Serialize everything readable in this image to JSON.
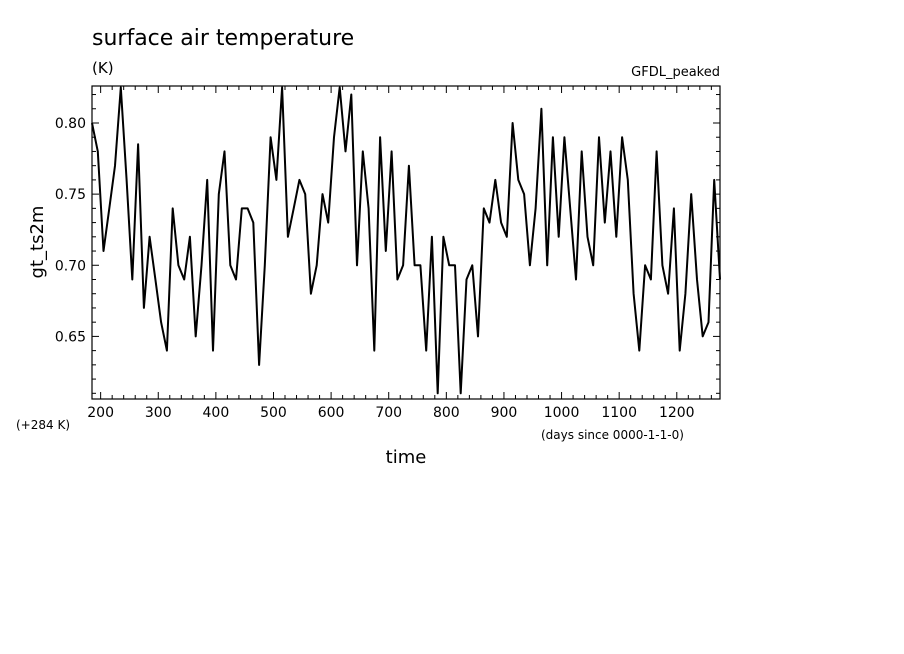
{
  "chart_data": {
    "type": "line",
    "title": "surface air temperature",
    "units": "(K)",
    "tag": "GFDL_peaked",
    "ylabel": "gt_ts2m",
    "xlabel": "time",
    "y_offset_label": "(+284 K)",
    "x_units_label": "(days since 0000-1-1-0)",
    "xlim": [
      185,
      1275
    ],
    "ylim": [
      0.606,
      0.826
    ],
    "xticks": [
      200,
      300,
      400,
      500,
      600,
      700,
      800,
      900,
      1000,
      1100,
      1200
    ],
    "yticks": [
      0.65,
      0.7,
      0.75,
      0.8
    ],
    "ytick_labels": [
      "0.65",
      "0.70",
      "0.75",
      "0.80"
    ],
    "grid": false,
    "series": [
      {
        "x": [
          185,
          195,
          205,
          215,
          225,
          235,
          245,
          255,
          265,
          275,
          285,
          295,
          305,
          315,
          325,
          335,
          345,
          355,
          365,
          375,
          385,
          395,
          405,
          415,
          425,
          435,
          445,
          455,
          465,
          475,
          485,
          495,
          505,
          515,
          525,
          535,
          545,
          555,
          565,
          575,
          585,
          595,
          605,
          615,
          625,
          635,
          645,
          655,
          665,
          675,
          685,
          695,
          705,
          715,
          725,
          735,
          745,
          755,
          765,
          775,
          785,
          795,
          805,
          815,
          825,
          835,
          845,
          855,
          865,
          875,
          885,
          895,
          905,
          915,
          925,
          935,
          945,
          955,
          965,
          975,
          985,
          995,
          1005,
          1015,
          1025,
          1035,
          1045,
          1055,
          1065,
          1075,
          1085,
          1095,
          1105,
          1115,
          1125,
          1135,
          1145,
          1155,
          1165,
          1175,
          1185,
          1195,
          1205,
          1215,
          1225,
          1235,
          1245,
          1255,
          1265,
          1275
        ],
        "values": [
          0.8,
          0.78,
          0.71,
          0.74,
          0.77,
          0.825,
          0.76,
          0.69,
          0.785,
          0.67,
          0.72,
          0.69,
          0.66,
          0.64,
          0.74,
          0.7,
          0.69,
          0.72,
          0.65,
          0.7,
          0.76,
          0.64,
          0.75,
          0.78,
          0.7,
          0.69,
          0.74,
          0.74,
          0.73,
          0.63,
          0.7,
          0.79,
          0.76,
          0.825,
          0.72,
          0.74,
          0.76,
          0.75,
          0.68,
          0.7,
          0.75,
          0.73,
          0.79,
          0.825,
          0.78,
          0.82,
          0.7,
          0.78,
          0.74,
          0.64,
          0.79,
          0.71,
          0.78,
          0.69,
          0.7,
          0.77,
          0.7,
          0.7,
          0.64,
          0.72,
          0.61,
          0.72,
          0.7,
          0.7,
          0.61,
          0.69,
          0.7,
          0.65,
          0.74,
          0.73,
          0.76,
          0.73,
          0.72,
          0.8,
          0.76,
          0.75,
          0.7,
          0.74,
          0.81,
          0.7,
          0.79,
          0.72,
          0.79,
          0.74,
          0.69,
          0.78,
          0.72,
          0.7,
          0.79,
          0.73,
          0.78,
          0.72,
          0.79,
          0.76,
          0.68,
          0.64,
          0.7,
          0.69,
          0.78,
          0.7,
          0.68,
          0.74,
          0.64,
          0.68,
          0.75,
          0.69,
          0.65,
          0.66,
          0.76,
          0.69
        ]
      }
    ]
  }
}
